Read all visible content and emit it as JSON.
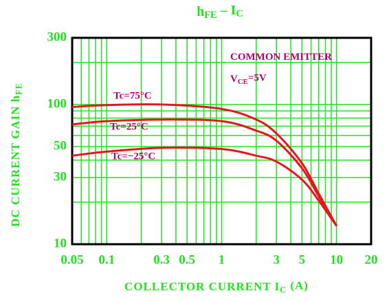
{
  "chart_data": {
    "type": "line",
    "title": [
      {
        "text": "h"
      },
      {
        "text": "FE",
        "sub": true
      },
      {
        "text": "  –  I"
      },
      {
        "text": "C",
        "sub": true
      }
    ],
    "x_label": [
      {
        "text": "COLLECTOR CURRENT I"
      },
      {
        "text": "C",
        "sub": true
      },
      {
        "text": "  (A)"
      }
    ],
    "y_label": [
      {
        "text": "DC CURRENT GAIN h"
      },
      {
        "text": "FE",
        "sub": true
      }
    ],
    "annotations": [
      [
        {
          "text": "COMMON EMITTER"
        }
      ],
      [
        {
          "text": "V"
        },
        {
          "text": "CE",
          "sub": true
        },
        {
          "text": "=5V"
        }
      ]
    ],
    "log_x": true,
    "log_y": true,
    "grid": true,
    "xlim": [
      0.05,
      20
    ],
    "ylim": [
      10,
      300
    ],
    "xticks": [
      0.05,
      0.1,
      0.3,
      0.5,
      1,
      3,
      5,
      10,
      20
    ],
    "yticks": [
      10,
      30,
      50,
      100,
      300
    ],
    "xminor": [
      0.06,
      0.07,
      0.08,
      0.09,
      0.2,
      0.4,
      0.6,
      0.7,
      0.8,
      0.9,
      2,
      4,
      6,
      7,
      8,
      9
    ],
    "yminor": [
      20,
      40,
      60,
      70,
      80,
      90,
      200
    ],
    "grid_color": "#22e022",
    "x": [
      0.05,
      0.1,
      0.3,
      1,
      2,
      3,
      5,
      7,
      10
    ],
    "series": [
      {
        "name": "Tc=75°C",
        "color": "#e8141e",
        "values": [
          96,
          99,
          100,
          93,
          78,
          62,
          38,
          23,
          13.5
        ]
      },
      {
        "name": "Tc=25°C",
        "color": "#e8141e",
        "values": [
          72,
          76,
          78,
          76,
          65,
          55,
          35,
          22,
          13.5
        ]
      },
      {
        "name": "Tc=−25°C",
        "color": "#e8141e",
        "values": [
          43,
          46,
          49,
          48,
          43,
          39,
          29,
          20.5,
          13.5
        ]
      }
    ]
  }
}
